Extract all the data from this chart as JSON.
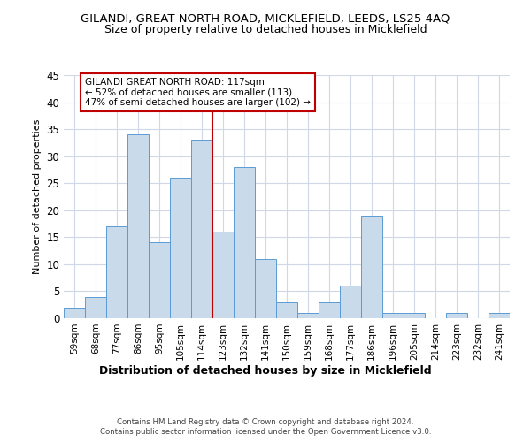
{
  "title1": "GILANDI, GREAT NORTH ROAD, MICKLEFIELD, LEEDS, LS25 4AQ",
  "title2": "Size of property relative to detached houses in Micklefield",
  "xlabel": "Distribution of detached houses by size in Micklefield",
  "ylabel": "Number of detached properties",
  "categories": [
    "59sqm",
    "68sqm",
    "77sqm",
    "86sqm",
    "95sqm",
    "105sqm",
    "114sqm",
    "123sqm",
    "132sqm",
    "141sqm",
    "150sqm",
    "159sqm",
    "168sqm",
    "177sqm",
    "186sqm",
    "196sqm",
    "205sqm",
    "214sqm",
    "223sqm",
    "232sqm",
    "241sqm"
  ],
  "values": [
    2,
    4,
    17,
    34,
    14,
    26,
    33,
    16,
    28,
    11,
    3,
    1,
    3,
    6,
    19,
    1,
    1,
    0,
    1,
    0,
    1
  ],
  "bar_color": "#c9daea",
  "bar_edge_color": "#5b9bd5",
  "highlight_index": 6,
  "highlight_color": "#c00000",
  "annotation_line1": "GILANDI GREAT NORTH ROAD: 117sqm",
  "annotation_line2": "← 52% of detached houses are smaller (113)",
  "annotation_line3": "47% of semi-detached houses are larger (102) →",
  "ylim": [
    0,
    45
  ],
  "yticks": [
    0,
    5,
    10,
    15,
    20,
    25,
    30,
    35,
    40,
    45
  ],
  "footer1": "Contains HM Land Registry data © Crown copyright and database right 2024.",
  "footer2": "Contains public sector information licensed under the Open Government Licence v3.0.",
  "background_color": "#ffffff",
  "grid_color": "#d0d8e8"
}
